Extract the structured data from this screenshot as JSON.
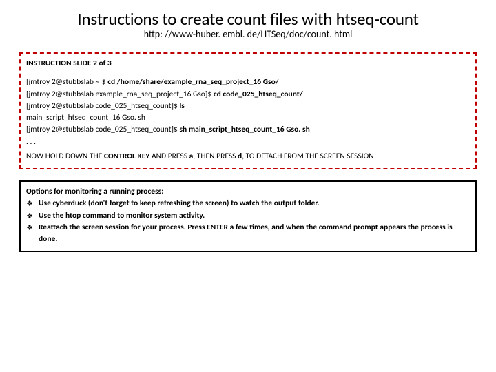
{
  "title": "Instructions to create count files with htseq-count",
  "subtitle": "http: //www-huber. embl. de/HTSeq/doc/count. html",
  "red_box": {
    "border_color": "#c00000",
    "slide_label": "INSTRUCTION SLIDE 2 of 3",
    "lines": [
      {
        "prompt": "[jmtroy 2@stubbslab ~]$ ",
        "cmd": "cd /home/share/example_rna_seq_project_16 Gso/"
      },
      {
        "prompt": "[jmtroy 2@stubbslab example_rna_seq_project_16 Gso]$ ",
        "cmd": "cd code_025_htseq_count/"
      },
      {
        "prompt": "[jmtroy 2@stubbslab code_025_htseq_count]$ ",
        "cmd": "ls"
      },
      {
        "prompt": "main_script_htseq_count_16 Gso. sh",
        "cmd": ""
      },
      {
        "prompt": "[jmtroy 2@stubbslab code_025_htseq_count]$ ",
        "cmd": "sh  main_script_htseq_count_16 Gso. sh"
      },
      {
        "prompt": ". . .",
        "cmd": ""
      }
    ],
    "detach_pre": "NOW HOLD DOWN THE ",
    "detach_ctrl": "CONTROL KEY",
    "detach_mid1": " AND PRESS ",
    "detach_a": "a",
    "detach_mid2": ", THEN PRESS ",
    "detach_d": "d",
    "detach_post": ", TO DETACH FROM THE SCREEN SESSION"
  },
  "black_box": {
    "heading": "Options for monitoring a running process:",
    "items": [
      {
        "bullet": "❖",
        "text": "Use cyberduck (don't forget to keep refreshing the screen) to watch the output folder."
      },
      {
        "bullet": "❖",
        "text": "Use the htop command to monitor system activity."
      },
      {
        "bullet": "❖",
        "text": "Reattach the screen session for your process.  Press ENTER a few times, and when the command prompt appears the process is done."
      }
    ]
  }
}
